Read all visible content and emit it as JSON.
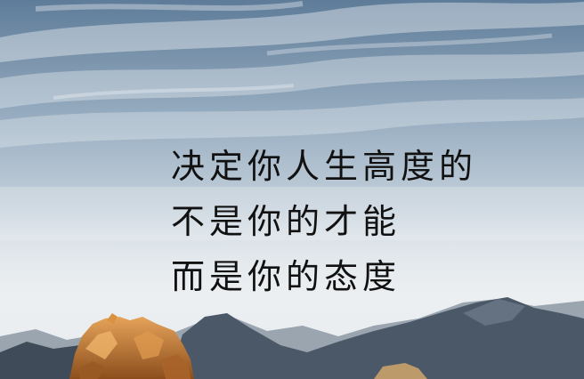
{
  "quote": {
    "lines": [
      "决定你人生高度的",
      "不是你的才能",
      "而是你的态度"
    ]
  },
  "colors": {
    "text": "#111111",
    "sky_top": "#5f7f9d",
    "sky_mid": "#d7dfe6",
    "fog": "#eef1f3",
    "mountain_far": "#8c98a5",
    "mountain_near": "#4a5868",
    "rock": "#c9782f"
  },
  "icons": [
    "sky",
    "clouds",
    "sea-of-clouds",
    "mountains",
    "rock-peak"
  ]
}
